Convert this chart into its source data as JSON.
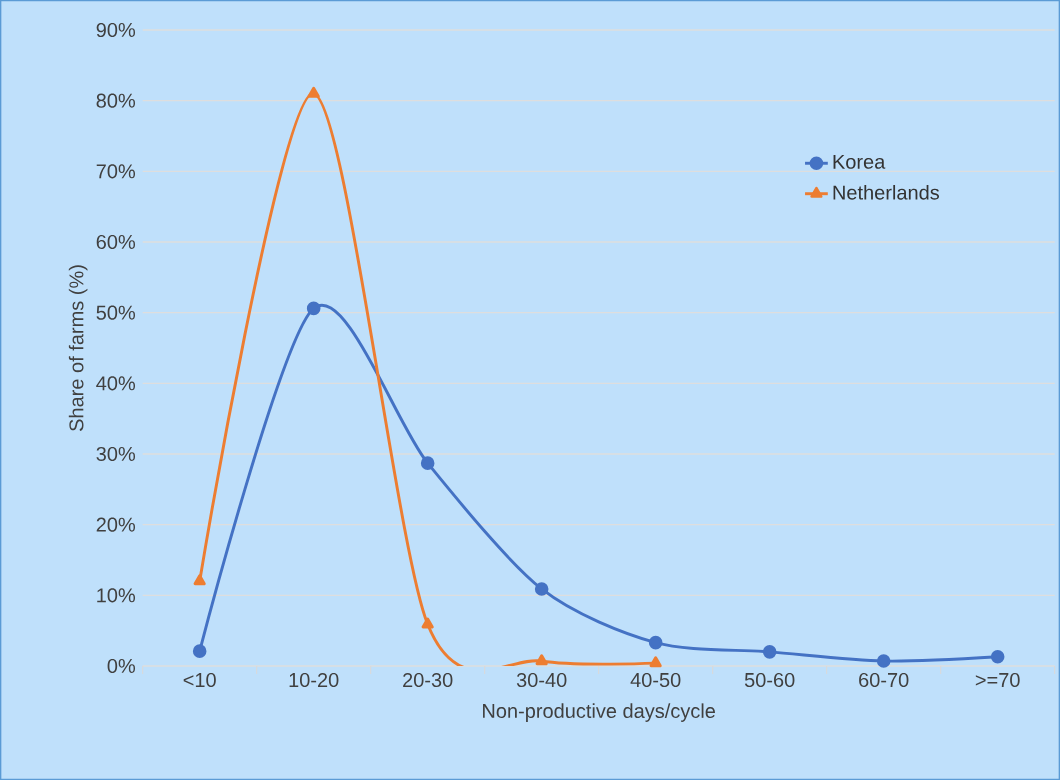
{
  "chart_data": {
    "type": "line",
    "xlabel": "Non-productive days/cycle",
    "ylabel": "Share of farms (%)",
    "categories": [
      "<10",
      "10-20",
      "20-30",
      "30-40",
      "40-50",
      "50-60",
      "60-70",
      ">=70"
    ],
    "series": [
      {
        "name": "Korea",
        "color": "#4472c4",
        "marker": "circle",
        "values": [
          2.1,
          50.6,
          28.7,
          10.9,
          3.3,
          2.0,
          0.7,
          1.3
        ]
      },
      {
        "name": "Netherlands",
        "color": "#ed7d31",
        "marker": "triangle",
        "values": [
          12.0,
          81.0,
          5.9,
          0.7,
          0.4,
          null,
          null,
          null
        ]
      }
    ],
    "ylim": [
      0,
      90
    ],
    "yticks": [
      {
        "value": 0,
        "label": "0%"
      },
      {
        "value": 10,
        "label": "10%"
      },
      {
        "value": 20,
        "label": "20%"
      },
      {
        "value": 30,
        "label": "30%"
      },
      {
        "value": 40,
        "label": "40%"
      },
      {
        "value": 50,
        "label": "50%"
      },
      {
        "value": 60,
        "label": "60%"
      },
      {
        "value": 70,
        "label": "70%"
      },
      {
        "value": 80,
        "label": "80%"
      },
      {
        "value": 90,
        "label": "90%"
      }
    ],
    "grid": "y",
    "legend": "top right",
    "line_style": "solid"
  }
}
